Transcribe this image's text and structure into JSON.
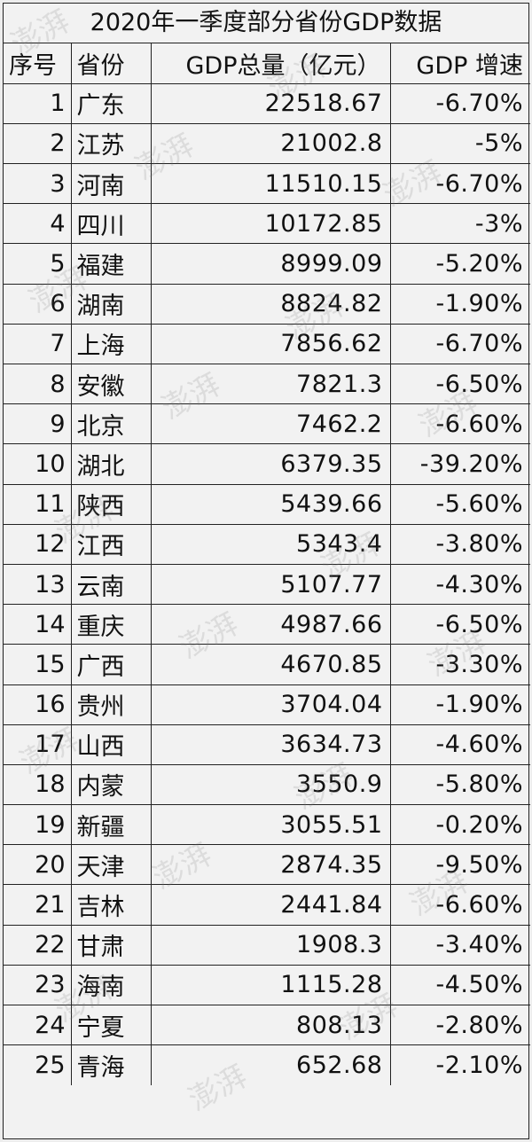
{
  "table": {
    "title": "2020年一季度部分省份GDP数据",
    "headers": {
      "index": "序号",
      "province": "省份",
      "gdp": "GDP总量（亿元）",
      "growth": "GDP 增速"
    },
    "rows": [
      {
        "index": "1",
        "province": "广东",
        "gdp": "22518.67",
        "growth": "-6.70%"
      },
      {
        "index": "2",
        "province": "江苏",
        "gdp": "21002.8",
        "growth": "-5%"
      },
      {
        "index": "3",
        "province": "河南",
        "gdp": "11510.15",
        "growth": "-6.70%"
      },
      {
        "index": "4",
        "province": "四川",
        "gdp": "10172.85",
        "growth": "-3%"
      },
      {
        "index": "5",
        "province": "福建",
        "gdp": "8999.09",
        "growth": "-5.20%"
      },
      {
        "index": "6",
        "province": "湖南",
        "gdp": "8824.82",
        "growth": "-1.90%"
      },
      {
        "index": "7",
        "province": "上海",
        "gdp": "7856.62",
        "growth": "-6.70%"
      },
      {
        "index": "8",
        "province": "安徽",
        "gdp": "7821.3",
        "growth": "-6.50%"
      },
      {
        "index": "9",
        "province": "北京",
        "gdp": "7462.2",
        "growth": "-6.60%"
      },
      {
        "index": "10",
        "province": "湖北",
        "gdp": "6379.35",
        "growth": "-39.20%"
      },
      {
        "index": "11",
        "province": "陕西",
        "gdp": "5439.66",
        "growth": "-5.60%"
      },
      {
        "index": "12",
        "province": "江西",
        "gdp": "5343.4",
        "growth": "-3.80%"
      },
      {
        "index": "13",
        "province": "云南",
        "gdp": "5107.77",
        "growth": "-4.30%"
      },
      {
        "index": "14",
        "province": "重庆",
        "gdp": "4987.66",
        "growth": "-6.50%"
      },
      {
        "index": "15",
        "province": "广西",
        "gdp": "4670.85",
        "growth": "-3.30%"
      },
      {
        "index": "16",
        "province": "贵州",
        "gdp": "3704.04",
        "growth": "-1.90%"
      },
      {
        "index": "17",
        "province": "山西",
        "gdp": "3634.73",
        "growth": "-4.60%"
      },
      {
        "index": "18",
        "province": "内蒙",
        "gdp": "3550.9",
        "growth": "-5.80%"
      },
      {
        "index": "19",
        "province": "新疆",
        "gdp": "3055.51",
        "growth": "-0.20%"
      },
      {
        "index": "20",
        "province": "天津",
        "gdp": "2874.35",
        "growth": "-9.50%"
      },
      {
        "index": "21",
        "province": "吉林",
        "gdp": "2441.84",
        "growth": "-6.60%"
      },
      {
        "index": "22",
        "province": "甘肃",
        "gdp": "1908.3",
        "growth": "-3.40%"
      },
      {
        "index": "23",
        "province": "海南",
        "gdp": "1115.28",
        "growth": "-4.50%"
      },
      {
        "index": "24",
        "province": "宁夏",
        "gdp": "808.13",
        "growth": "-2.80%"
      },
      {
        "index": "25",
        "province": "青海",
        "gdp": "652.68",
        "growth": "-2.10%"
      }
    ]
  },
  "watermark": {
    "text": "澎湃"
  }
}
